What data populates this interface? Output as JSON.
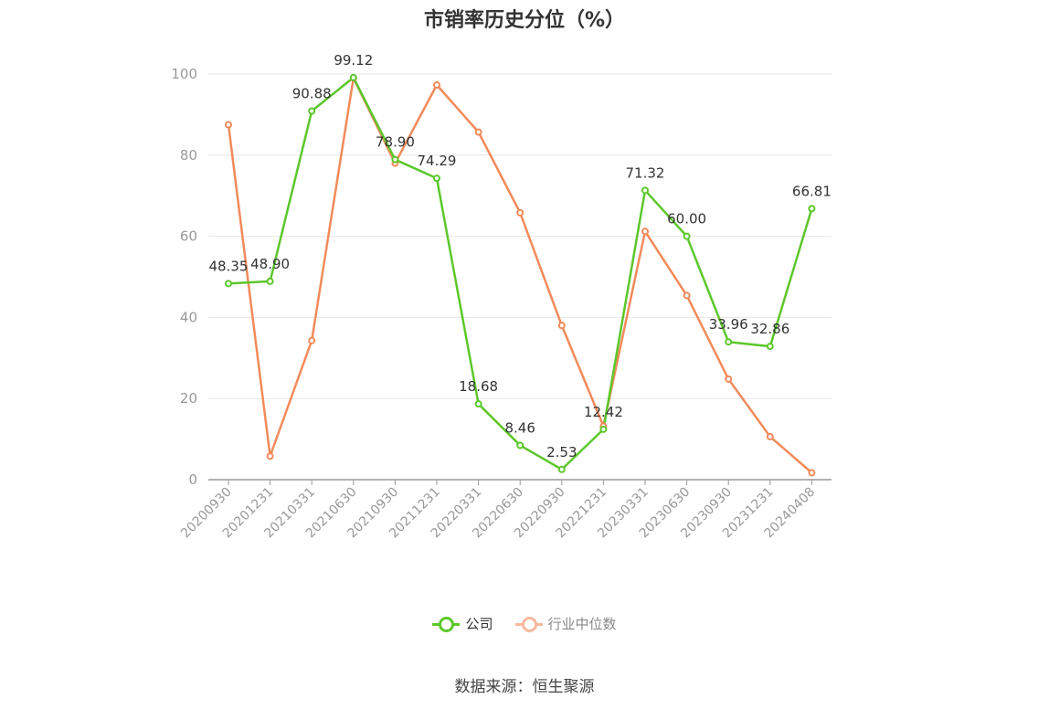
{
  "chart_data": {
    "type": "line",
    "title": "市销率历史分位（%）",
    "categories": [
      "20200930",
      "20201231",
      "20210331",
      "20210630",
      "20210930",
      "20211231",
      "20220331",
      "20220630",
      "20220930",
      "20221231",
      "20230331",
      "20230630",
      "20230930",
      "20231231",
      "20240408"
    ],
    "series": [
      {
        "name": "公司",
        "color": "#5cc72b",
        "values": [
          48.35,
          48.9,
          90.88,
          99.12,
          78.9,
          74.29,
          18.68,
          8.46,
          2.53,
          12.42,
          71.32,
          60.0,
          33.96,
          32.86,
          66.81
        ],
        "labels": [
          "48.35",
          "48.90",
          "90.88",
          "99.12",
          "78.90",
          "74.29",
          "18.68",
          "8.46",
          "2.53",
          "12.42",
          "71.32",
          "60.00",
          "33.96",
          "32.86",
          "66.81"
        ]
      },
      {
        "name": "行业中位数",
        "color": "#f28a5a",
        "values": [
          87.5,
          5.8,
          34.3,
          99.0,
          78.0,
          97.3,
          85.7,
          65.8,
          38.0,
          13.2,
          61.2,
          45.4,
          24.8,
          10.6,
          1.7
        ]
      }
    ],
    "ylim": [
      0,
      100
    ],
    "yticks": [
      0,
      20,
      40,
      60,
      80,
      100
    ],
    "grid": true,
    "legend_position": "bottom"
  },
  "source": "数据来源：恒生聚源"
}
